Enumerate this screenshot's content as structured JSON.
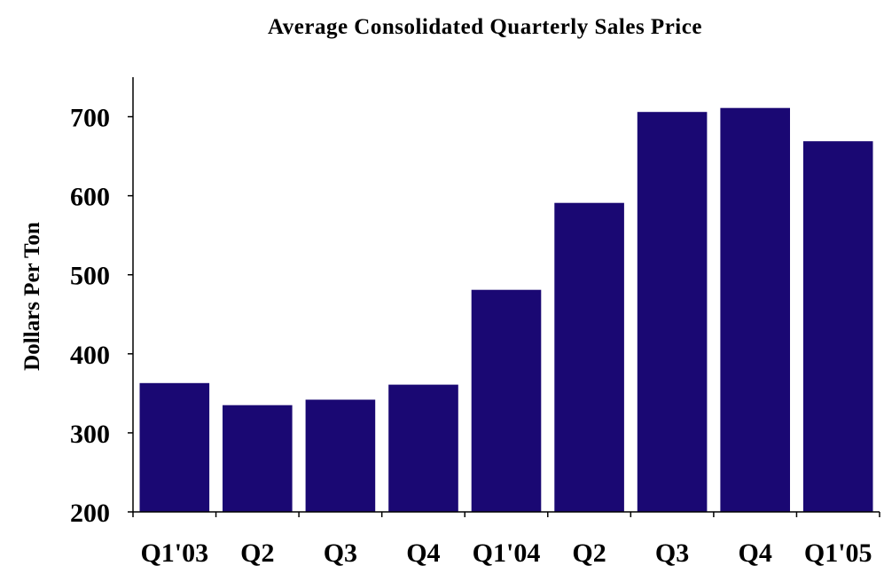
{
  "chart_data": {
    "type": "bar",
    "title": "Average Consolidated Quarterly Sales Price",
    "xlabel": "",
    "ylabel": "Dollars Per Ton",
    "categories": [
      "Q1'03",
      "Q2",
      "Q3",
      "Q4",
      "Q1'04",
      "Q2",
      "Q3",
      "Q4",
      "Q1'05"
    ],
    "values": [
      363,
      335,
      342,
      361,
      481,
      591,
      706,
      711,
      669
    ],
    "ylim": [
      200,
      750
    ],
    "yticks": [
      200,
      300,
      400,
      500,
      600,
      700
    ],
    "grid": false,
    "legend": "none",
    "bar_color": "#1a0873"
  }
}
